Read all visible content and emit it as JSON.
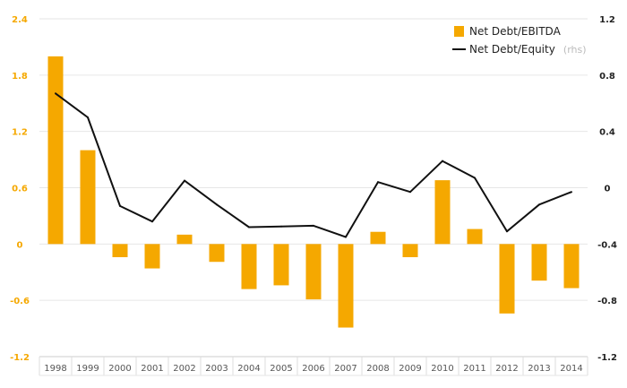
{
  "chart_data": {
    "type": "bar+line",
    "categories": [
      "1998",
      "1999",
      "2000",
      "2001",
      "2002",
      "2003",
      "2004",
      "2005",
      "2006",
      "2007",
      "2008",
      "2009",
      "2010",
      "2011",
      "2012",
      "2013",
      "2014"
    ],
    "series": [
      {
        "name": "Net Debt/EBITDA",
        "axis": "left",
        "kind": "bar",
        "color": "#f5a800",
        "values": [
          2.0,
          1.0,
          -0.14,
          -0.26,
          0.1,
          -0.19,
          -0.48,
          -0.44,
          -0.59,
          -0.89,
          0.13,
          -0.14,
          0.68,
          0.16,
          -0.74,
          -0.39,
          -0.47
        ]
      },
      {
        "name": "Net Debt/Equity",
        "axis": "right",
        "kind": "line",
        "color": "#111111",
        "values": [
          0.67,
          0.5,
          -0.13,
          -0.24,
          0.05,
          -0.12,
          -0.28,
          -0.275,
          -0.27,
          -0.35,
          0.04,
          -0.03,
          0.19,
          0.07,
          -0.31,
          -0.12,
          -0.03
        ]
      }
    ],
    "left_axis": {
      "ylim": [
        -1.2,
        2.4
      ],
      "ticks": [
        "-1.2",
        "-0.6",
        "0",
        "0.6",
        "1.2",
        "1.8",
        "2.4"
      ],
      "color": "#f5a800"
    },
    "right_axis": {
      "ylim": [
        -1.2,
        1.2
      ],
      "ticks": [
        "-1.2",
        "-0.8",
        "-0.4",
        "0",
        "0.4",
        "0.8",
        "1.2"
      ],
      "color": "#222222"
    },
    "legend": {
      "placement": "top-right",
      "items": [
        {
          "label": "Net Debt/EBITDA",
          "suffix": ""
        },
        {
          "label": "Net Debt/Equity",
          "suffix": "(rhs)"
        }
      ]
    },
    "grid": true,
    "gridline_color": "#e6e6e6"
  }
}
